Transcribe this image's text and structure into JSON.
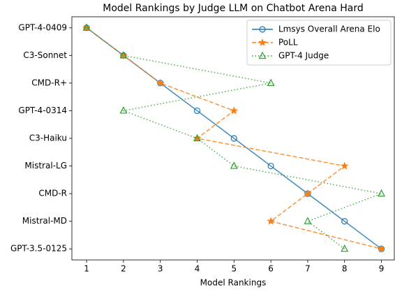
{
  "chart_data": {
    "type": "line",
    "orientation": "horizontal",
    "title": "Model Rankings by Judge LLM on Chatbot Arena Hard",
    "xlabel": "Model Rankings",
    "categories": [
      "GPT-4-0409",
      "C3-Sonnet",
      "CMD-R+",
      "GPT-4-0314",
      "C3-Haiku",
      "Mistral-LG",
      "CMD-R",
      "Mistral-MD",
      "GPT-3.5-0125"
    ],
    "series": [
      {
        "name": "Lmsys Overall Arena Elo",
        "color": "#1f77b4",
        "linestyle": "solid",
        "marker": "circle",
        "values": [
          1,
          2,
          3,
          4,
          5,
          6,
          7,
          8,
          9
        ]
      },
      {
        "name": "PoLL",
        "color": "#ff7f0e",
        "linestyle": "dashed",
        "marker": "star",
        "values": [
          1,
          2,
          3,
          5,
          4,
          8,
          7,
          6,
          9
        ]
      },
      {
        "name": "GPT-4 Judge",
        "color": "#2ca02c",
        "linestyle": "dotted",
        "marker": "triangle",
        "values": [
          1,
          2,
          6,
          2,
          4,
          5,
          9,
          7,
          8
        ]
      }
    ],
    "xlim": [
      0.6,
      9.35
    ],
    "xticks": [
      1,
      2,
      3,
      4,
      5,
      6,
      7,
      8,
      9
    ],
    "legend": "upper right"
  }
}
